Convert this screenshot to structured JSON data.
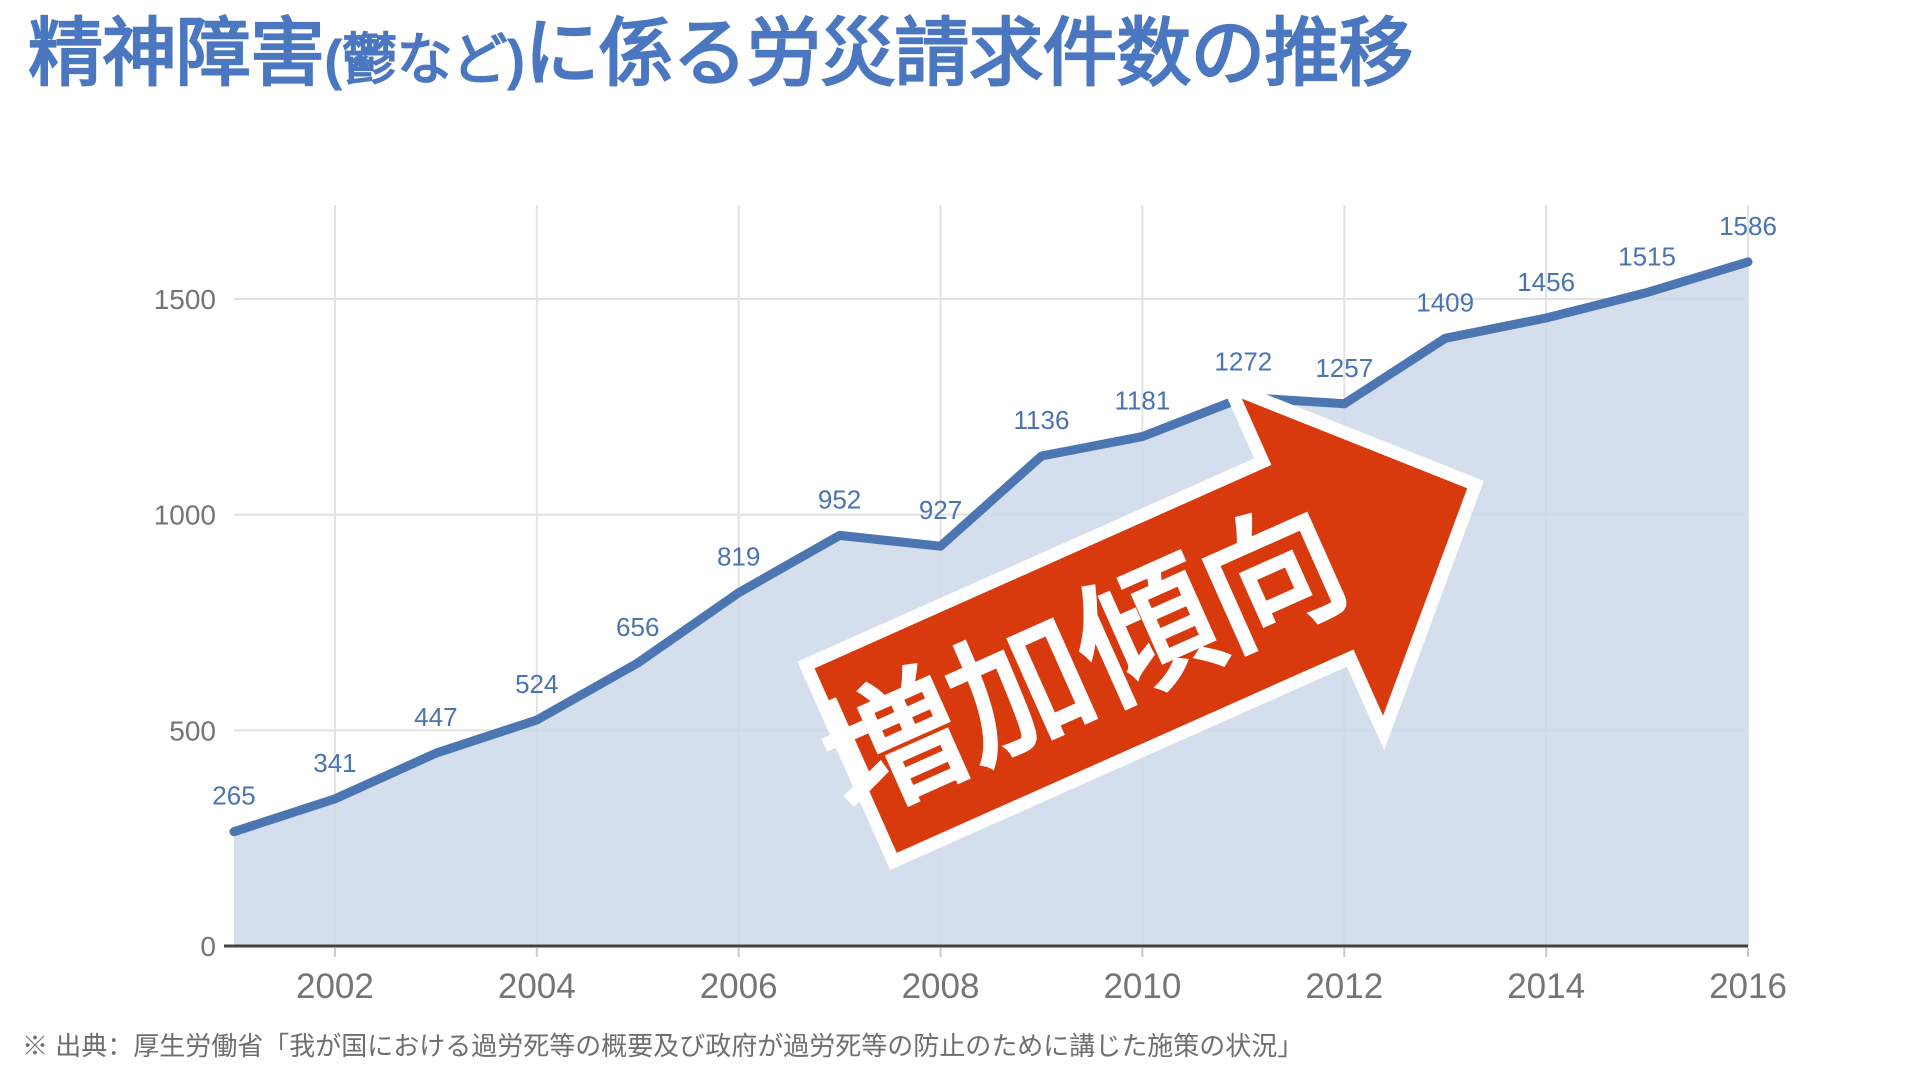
{
  "title": {
    "color": "#4a77c0",
    "segments": [
      {
        "text": "精神障害",
        "size": "large"
      },
      {
        "text": "(鬱など)",
        "size": "small"
      },
      {
        "text": "に係る労災請求件数の推移",
        "size": "large"
      }
    ]
  },
  "annotation_arrow": {
    "label": "増加傾向",
    "fill": "#d83a0d",
    "outline": "#ffffff"
  },
  "source_note": "※ 出典：厚生労働省「我が国における過労死等の概要及び政府が過労死等の防止のために講じた施策の状況」",
  "chart_data": {
    "type": "area",
    "title": "精神障害(鬱など)に係る労災請求件数の推移",
    "x": [
      2001,
      2002,
      2003,
      2004,
      2005,
      2006,
      2007,
      2008,
      2009,
      2010,
      2011,
      2012,
      2013,
      2014,
      2015,
      2016
    ],
    "values": [
      265,
      341,
      447,
      524,
      656,
      819,
      952,
      927,
      1136,
      1181,
      1272,
      1257,
      1409,
      1456,
      1515,
      1586
    ],
    "x_tick_labels": [
      "2002",
      "2004",
      "2006",
      "2008",
      "2010",
      "2012",
      "2014",
      "2016"
    ],
    "y_ticks": [
      0,
      500,
      1000,
      1500
    ],
    "ylim": [
      0,
      1700
    ],
    "xlabel": "",
    "ylabel": "",
    "grid": true,
    "legend": "none",
    "data_labels": true,
    "colors": {
      "line": "#4b76b2",
      "area_fill": "rgba(205,216,233,0.85)",
      "data_label": "#4a74b0",
      "axis_text": "#757575",
      "gridline": "#e2e2e2",
      "tick": "#c9c9c9",
      "baseline": "#424242"
    }
  }
}
